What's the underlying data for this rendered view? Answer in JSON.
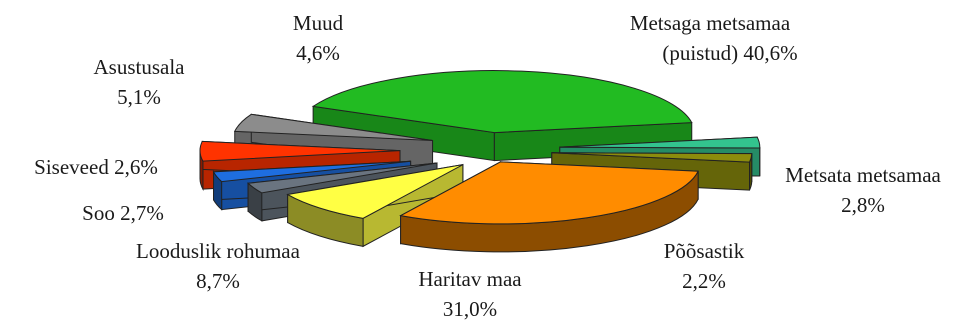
{
  "chart_data": {
    "type": "pie",
    "title": "",
    "slices": [
      {
        "label": "Metsaga metsamaa (puistud)",
        "value": 40.6,
        "label_text": [
          "Metsaga metsamaa",
          "(puistud) 40,6%"
        ],
        "color": "#22bb22"
      },
      {
        "label": "Metsata metsamaa",
        "value": 2.8,
        "label_text": [
          "Metsata metsamaa",
          "2,8%"
        ],
        "color": "#33c38e"
      },
      {
        "label": "Põõsastik",
        "value": 2.2,
        "label_text": [
          "Põõsastik",
          "2,2%"
        ],
        "color": "#8c8c0c"
      },
      {
        "label": "Haritav maa",
        "value": 31.0,
        "label_text": [
          "Haritav maa",
          "31,0%"
        ],
        "color": "#ff8c00"
      },
      {
        "label": "Looduslik rohumaa",
        "value": 8.7,
        "label_text": [
          "Looduslik rohumaa",
          "8,7%"
        ],
        "color": "#ffff44"
      },
      {
        "label": "Soo",
        "value": 2.7,
        "label_text": [
          "Soo 2,7%"
        ],
        "color": "#6a7480"
      },
      {
        "label": "Siseveed",
        "value": 2.6,
        "label_text": [
          "Siseveed 2,6%"
        ],
        "color": "#1e6ee0"
      },
      {
        "label": "Asustusala",
        "value": 5.1,
        "label_text": [
          "Asustusala",
          "5,1%"
        ],
        "color": "#ff3300"
      },
      {
        "label": "Muud",
        "value": 4.6,
        "label_text": [
          "Muud",
          "4,6%"
        ],
        "color": "#8c8c8c"
      }
    ]
  }
}
